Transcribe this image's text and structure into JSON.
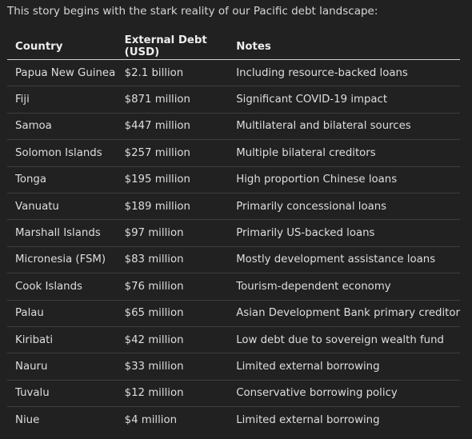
{
  "intro": "This story begins with the stark reality of our Pacific debt landscape:",
  "table": {
    "headers": [
      "Country",
      "External Debt (USD)",
      "Notes"
    ],
    "rows": [
      [
        "Papua New Guinea",
        "$2.1 billion",
        "Including resource-backed loans"
      ],
      [
        "Fiji",
        "$871 million",
        "Significant COVID-19 impact"
      ],
      [
        "Samoa",
        "$447 million",
        "Multilateral and bilateral sources"
      ],
      [
        "Solomon Islands",
        "$257 million",
        "Multiple bilateral creditors"
      ],
      [
        "Tonga",
        "$195 million",
        "High proportion Chinese loans"
      ],
      [
        "Vanuatu",
        "$189 million",
        "Primarily concessional loans"
      ],
      [
        "Marshall Islands",
        "$97 million",
        "Primarily US-backed loans"
      ],
      [
        "Micronesia (FSM)",
        "$83 million",
        "Mostly development assistance loans"
      ],
      [
        "Cook Islands",
        "$76 million",
        "Tourism-dependent economy"
      ],
      [
        "Palau",
        "$65 million",
        "Asian Development Bank primary creditor"
      ],
      [
        "Kiribati",
        "$42 million",
        "Low debt due to sovereign wealth fund"
      ],
      [
        "Nauru",
        "$33 million",
        "Limited external borrowing"
      ],
      [
        "Tuvalu",
        "$12 million",
        "Conservative borrowing policy"
      ],
      [
        "Niue",
        "$4 million",
        "Limited external borrowing"
      ]
    ]
  }
}
